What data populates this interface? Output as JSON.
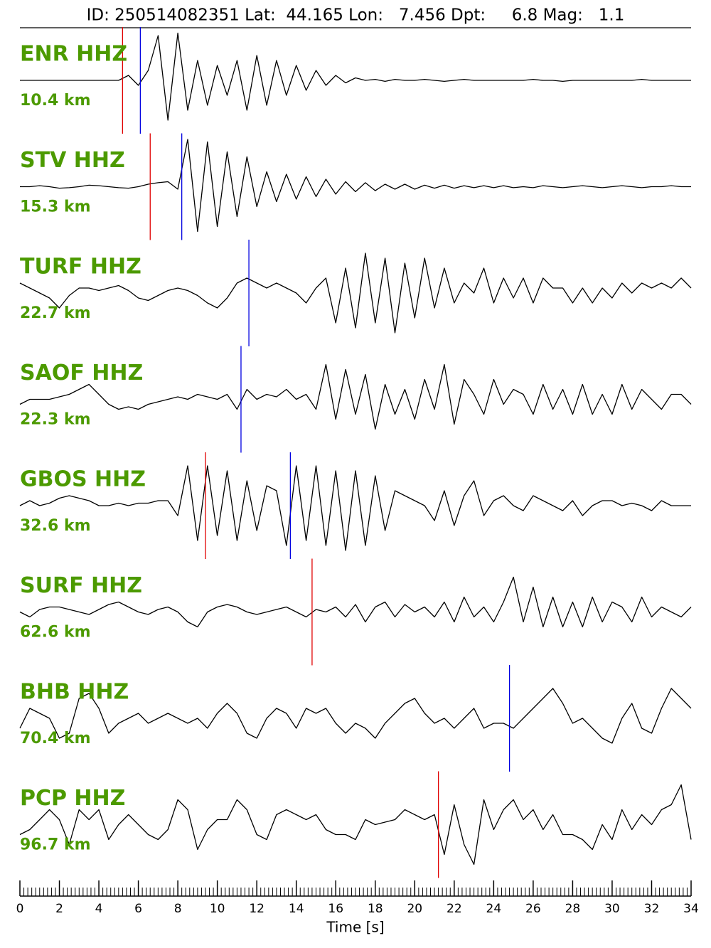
{
  "chart_data": {
    "type": "seismogram",
    "title": "ID: 250514082351 Lat:  44.165 Lon:   7.456 Dpt:     6.8 Mag:   1.1",
    "xlabel": "Time [s]",
    "xlim": [
      0,
      34
    ],
    "xticks": [
      0,
      2,
      4,
      6,
      8,
      10,
      12,
      14,
      16,
      18,
      20,
      22,
      24,
      26,
      28,
      30,
      32,
      34
    ],
    "minor_tick_step": 0.2,
    "ylim": [
      -1,
      1
    ],
    "label_color": "#4c9a00",
    "p_color": "#e00000",
    "s_color": "#0000e0",
    "x": [
      0,
      0.5,
      1,
      1.5,
      2,
      2.5,
      3,
      3.5,
      4,
      4.5,
      5,
      5.5,
      6,
      6.5,
      7,
      7.5,
      8,
      8.5,
      9,
      9.5,
      10,
      10.5,
      11,
      11.5,
      12,
      12.5,
      13,
      13.5,
      14,
      14.5,
      15,
      15.5,
      16,
      16.5,
      17,
      17.5,
      18,
      18.5,
      19,
      19.5,
      20,
      20.5,
      21,
      21.5,
      22,
      22.5,
      23,
      23.5,
      24,
      24.5,
      25,
      25.5,
      26,
      26.5,
      27,
      27.5,
      28,
      28.5,
      29,
      29.5,
      30,
      30.5,
      31,
      31.5,
      32,
      32.5,
      33,
      33.5,
      34
    ],
    "series": [
      {
        "name": "ENR HHZ",
        "distance": "10.4 km",
        "color": "#000000",
        "p_pick": 5.2,
        "s_pick": 6.1,
        "values": [
          0,
          0,
          0,
          0,
          0,
          0,
          0,
          0,
          0,
          0,
          0,
          0.1,
          -0.1,
          0.2,
          0.9,
          -0.8,
          0.95,
          -0.6,
          0.4,
          -0.5,
          0.3,
          -0.3,
          0.4,
          -0.6,
          0.5,
          -0.5,
          0.4,
          -0.3,
          0.3,
          -0.2,
          0.2,
          -0.1,
          0.1,
          -0.05,
          0.05,
          0,
          0.02,
          -0.02,
          0.02,
          0,
          0,
          0.02,
          0,
          -0.02,
          0,
          0.02,
          0,
          0,
          0,
          0,
          0,
          0,
          0.02,
          0,
          0,
          -0.02,
          0,
          0,
          0,
          0,
          0,
          0,
          0,
          0.02,
          0,
          0,
          0,
          0,
          0
        ]
      },
      {
        "name": "STV HHZ",
        "distance": "15.3 km",
        "color": "#000000",
        "p_pick": 6.6,
        "s_pick": 8.2,
        "values": [
          0,
          0,
          0.02,
          0,
          -0.03,
          -0.02,
          0,
          0.03,
          0.02,
          0,
          -0.02,
          -0.03,
          0,
          0.05,
          0.08,
          0.1,
          -0.05,
          0.95,
          -0.9,
          0.9,
          -0.8,
          0.7,
          -0.6,
          0.6,
          -0.4,
          0.3,
          -0.3,
          0.25,
          -0.25,
          0.2,
          -0.2,
          0.15,
          -0.15,
          0.1,
          -0.1,
          0.08,
          -0.08,
          0.05,
          -0.05,
          0.05,
          -0.05,
          0.03,
          -0.03,
          0.03,
          -0.03,
          0.02,
          -0.02,
          0.02,
          -0.02,
          0.02,
          -0.02,
          0,
          -0.02,
          0.02,
          0,
          -0.02,
          0,
          0.02,
          0,
          -0.02,
          0,
          0.02,
          0,
          -0.02,
          0,
          0,
          0.02,
          0,
          0
        ]
      },
      {
        "name": "TURF HHZ",
        "distance": "22.7 km",
        "color": "#000000",
        "s_pick": 11.6,
        "values": [
          0.2,
          0.1,
          0,
          -0.1,
          -0.3,
          -0.05,
          0.1,
          0.1,
          0.05,
          0.1,
          0.15,
          0.05,
          -0.1,
          -0.15,
          -0.05,
          0.05,
          0.1,
          0.05,
          -0.05,
          -0.2,
          -0.3,
          -0.1,
          0.2,
          0.3,
          0.2,
          0.1,
          0.2,
          0.1,
          0,
          -0.2,
          0.1,
          0.3,
          -0.6,
          0.5,
          -0.7,
          0.8,
          -0.6,
          0.7,
          -0.8,
          0.6,
          -0.5,
          0.7,
          -0.3,
          0.5,
          -0.2,
          0.2,
          0,
          0.5,
          -0.2,
          0.3,
          -0.1,
          0.3,
          -0.2,
          0.3,
          0.1,
          0.1,
          -0.2,
          0.1,
          -0.2,
          0.1,
          -0.1,
          0.2,
          0,
          0.2,
          0.1,
          0.2,
          0.1,
          0.3,
          0.1
        ]
      },
      {
        "name": "SAOF HHZ",
        "distance": "22.3 km",
        "color": "#000000",
        "s_pick": 11.2,
        "values": [
          -0.1,
          0,
          0,
          0,
          0.05,
          0.1,
          0.2,
          0.3,
          0.1,
          -0.1,
          -0.2,
          -0.15,
          -0.2,
          -0.1,
          -0.05,
          0,
          0.05,
          0,
          0.1,
          0.05,
          0,
          0.1,
          -0.2,
          0.2,
          0,
          0.1,
          0.05,
          0.2,
          0,
          0.1,
          -0.2,
          0.7,
          -0.4,
          0.6,
          -0.3,
          0.5,
          -0.6,
          0.3,
          -0.3,
          0.2,
          -0.4,
          0.4,
          -0.2,
          0.7,
          -0.5,
          0.4,
          0.1,
          -0.3,
          0.4,
          -0.1,
          0.2,
          0.1,
          -0.3,
          0.3,
          -0.2,
          0.2,
          -0.3,
          0.3,
          -0.3,
          0.1,
          -0.3,
          0.3,
          -0.2,
          0.2,
          0,
          -0.2,
          0.1,
          0.1,
          -0.1
        ]
      },
      {
        "name": "GBOS HHZ",
        "distance": "32.6 km",
        "color": "#000000",
        "p_pick": 9.4,
        "s_pick": 13.7,
        "values": [
          0,
          0.1,
          0,
          0.05,
          0.15,
          0.2,
          0.15,
          0.1,
          0,
          0,
          0.05,
          0,
          0.05,
          0.05,
          0.1,
          0.1,
          -0.2,
          0.8,
          -0.7,
          0.8,
          -0.6,
          0.7,
          -0.7,
          0.5,
          -0.5,
          0.4,
          0.3,
          -0.8,
          0.8,
          -0.7,
          0.8,
          -0.8,
          0.7,
          -0.9,
          0.7,
          -0.8,
          0.6,
          -0.5,
          0.3,
          0.2,
          0.1,
          0,
          -0.3,
          0.3,
          -0.4,
          0.2,
          0.5,
          -0.2,
          0.1,
          0.2,
          0,
          -0.1,
          0.2,
          0.1,
          0,
          -0.1,
          0.1,
          -0.2,
          0,
          0.1,
          0.1,
          0,
          0.05,
          0,
          -0.1,
          0.1,
          0,
          0,
          0
        ]
      },
      {
        "name": "SURF HHZ",
        "distance": "62.6 km",
        "color": "#000000",
        "p_pick": 14.8,
        "values": [
          0,
          -0.1,
          0.05,
          0.1,
          0.1,
          0.05,
          0,
          -0.05,
          0.05,
          0.15,
          0.2,
          0.1,
          0,
          -0.05,
          0.05,
          0.1,
          0,
          -0.2,
          -0.3,
          0,
          0.1,
          0.15,
          0.1,
          0,
          -0.05,
          0,
          0.05,
          0.1,
          0,
          -0.1,
          0.05,
          0,
          0.1,
          -0.1,
          0.15,
          -0.2,
          0.1,
          0.2,
          -0.1,
          0.15,
          0,
          0.1,
          -0.1,
          0.2,
          -0.2,
          0.3,
          -0.1,
          0.1,
          -0.2,
          0.2,
          0.7,
          -0.2,
          0.5,
          -0.3,
          0.3,
          -0.3,
          0.2,
          -0.3,
          0.3,
          -0.2,
          0.2,
          0.1,
          -0.2,
          0.3,
          -0.1,
          0.1,
          0,
          -0.1,
          0.1
        ]
      },
      {
        "name": "BHB HHZ",
        "distance": "70.4 km",
        "color": "#000000",
        "s_pick": 24.8,
        "values": [
          -0.2,
          0.2,
          0.1,
          0,
          -0.4,
          -0.3,
          0.4,
          0.5,
          0.2,
          -0.3,
          -0.1,
          0,
          0.1,
          -0.1,
          0,
          0.1,
          0,
          -0.1,
          0,
          -0.2,
          0.1,
          0.3,
          0.1,
          -0.3,
          -0.4,
          0,
          0.2,
          0.1,
          -0.2,
          0.2,
          0.1,
          0.2,
          -0.1,
          -0.3,
          -0.1,
          -0.2,
          -0.4,
          -0.1,
          0.1,
          0.3,
          0.4,
          0.1,
          -0.1,
          0,
          -0.2,
          0,
          0.2,
          -0.2,
          -0.1,
          -0.1,
          -0.2,
          0,
          0.2,
          0.4,
          0.6,
          0.3,
          -0.1,
          0,
          -0.2,
          -0.4,
          -0.5,
          0,
          0.3,
          -0.2,
          -0.3,
          0.2,
          0.6,
          0.4,
          0.2
        ]
      },
      {
        "name": "PCP HHZ",
        "distance": "96.7 km",
        "color": "#000000",
        "p_pick": 21.2,
        "values": [
          -0.2,
          -0.1,
          0.1,
          0.3,
          0.1,
          -0.4,
          0.3,
          0.1,
          0.3,
          -0.3,
          0,
          0.2,
          0,
          -0.2,
          -0.3,
          -0.1,
          0.5,
          0.3,
          -0.5,
          -0.1,
          0.1,
          0.1,
          0.5,
          0.3,
          -0.2,
          -0.3,
          0.2,
          0.3,
          0.2,
          0.1,
          0.2,
          -0.1,
          -0.2,
          -0.2,
          -0.3,
          0.1,
          0,
          0.05,
          0.1,
          0.3,
          0.2,
          0.1,
          0.2,
          -0.6,
          0.4,
          -0.4,
          -0.8,
          0.5,
          -0.1,
          0.3,
          0.5,
          0.1,
          0.3,
          -0.1,
          0.2,
          -0.2,
          -0.2,
          -0.3,
          -0.5,
          0,
          -0.3,
          0.3,
          -0.1,
          0.2,
          0,
          0.3,
          0.4,
          0.8,
          -0.3
        ]
      }
    ]
  }
}
